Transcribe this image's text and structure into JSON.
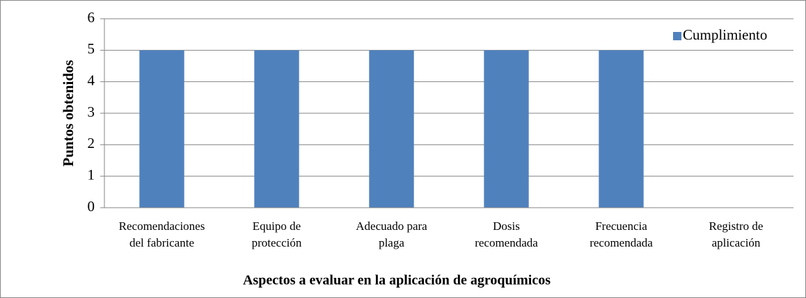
{
  "chart_data": {
    "type": "bar",
    "xlabel": "Aspectos a evaluar en la aplicación de agroquímicos",
    "ylabel": "Puntos obtenidos",
    "categories": [
      [
        "Recomendaciones",
        "del fabricante"
      ],
      [
        "Equipo de",
        "protección"
      ],
      [
        "Adecuado para",
        "plaga"
      ],
      [
        "Dosis",
        "recomendada"
      ],
      [
        "Frecuencia",
        "recomendada"
      ],
      [
        "Registro de",
        "aplicación"
      ]
    ],
    "series": [
      {
        "name": "Cumplimiento",
        "color": "#4f81bd",
        "values": [
          5,
          5,
          5,
          5,
          5,
          0
        ]
      }
    ],
    "ylim": [
      0,
      6
    ],
    "yticks": [
      0,
      1,
      2,
      3,
      4,
      5,
      6
    ],
    "grid": true,
    "legend": "top-right"
  }
}
